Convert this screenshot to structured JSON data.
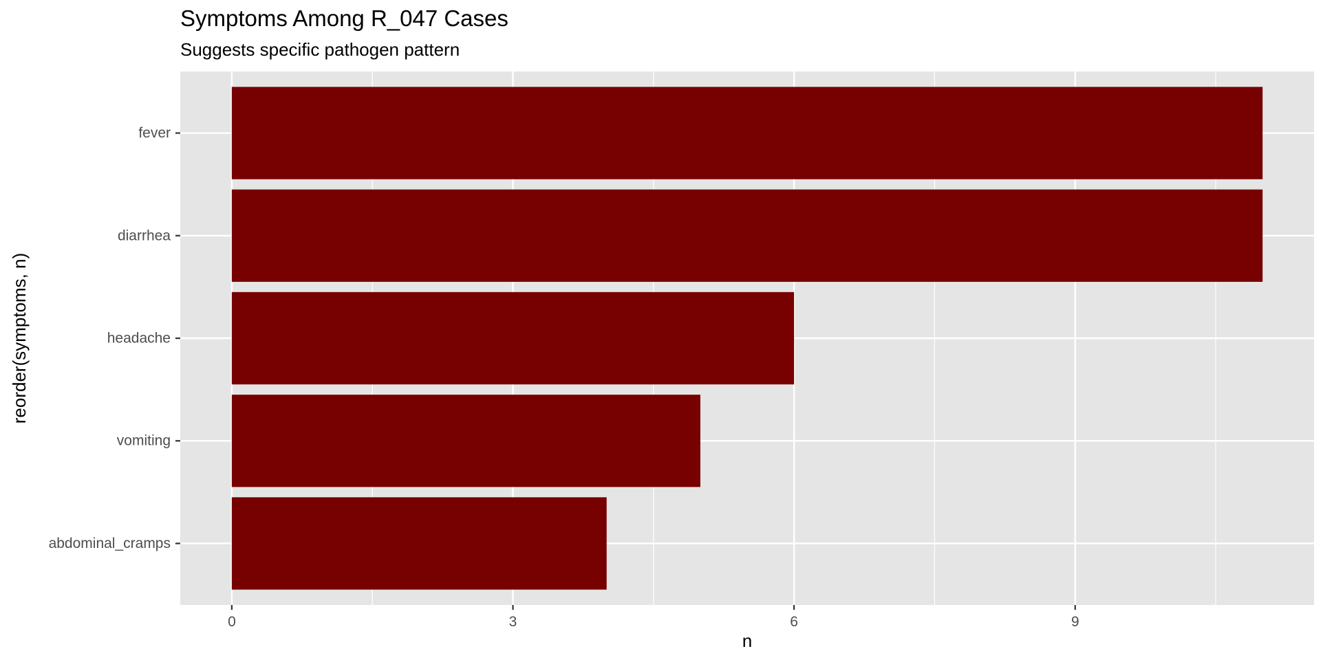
{
  "chart_data": {
    "type": "bar",
    "orientation": "horizontal",
    "title": "Symptoms Among R_047 Cases",
    "subtitle": "Suggests specific pathogen pattern",
    "xlabel": "n",
    "ylabel": "reorder(symptoms, n)",
    "categories": [
      "fever",
      "diarrhea",
      "headache",
      "vomiting",
      "abdominal_cramps"
    ],
    "values": [
      11,
      11,
      6,
      5,
      4
    ],
    "xlim": [
      -0.55,
      11.55
    ],
    "xticks": [
      0,
      3,
      6,
      9
    ],
    "grid": true,
    "bar_color": "#770000",
    "panel_color": "#e5e5e5",
    "grid_color": "#ffffff"
  }
}
